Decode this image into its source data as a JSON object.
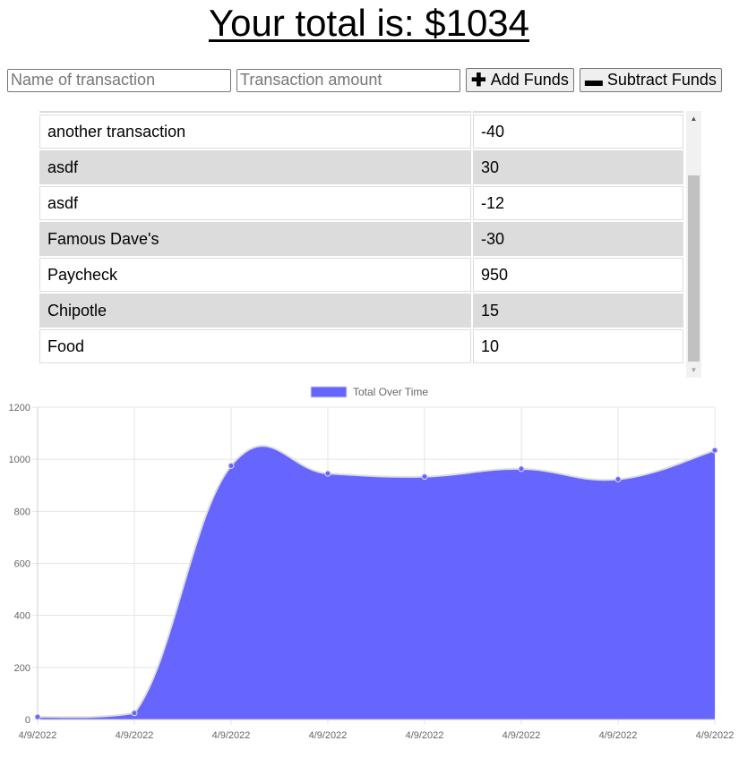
{
  "header": {
    "total_text": "Your total is: $1034"
  },
  "form": {
    "name_placeholder": "Name of transaction",
    "amount_placeholder": "Transaction amount",
    "add_label": "Add Funds",
    "add_icon": "plus-icon",
    "subtract_label": "Subtract Funds",
    "subtract_icon": "minus-icon"
  },
  "transactions": [
    {
      "name": "",
      "value": ""
    },
    {
      "name": "another transaction",
      "value": "-40"
    },
    {
      "name": "asdf",
      "value": "30"
    },
    {
      "name": "asdf",
      "value": "-12"
    },
    {
      "name": "Famous Dave's",
      "value": "-30"
    },
    {
      "name": "Paycheck",
      "value": "950"
    },
    {
      "name": "Chipotle",
      "value": "15"
    },
    {
      "name": "Food",
      "value": "10"
    }
  ],
  "chart_data": {
    "type": "area",
    "legend": [
      "Total Over Time"
    ],
    "legend_position": "top",
    "x": [
      "4/9/2022",
      "4/9/2022",
      "4/9/2022",
      "4/9/2022",
      "4/9/2022",
      "4/9/2022",
      "4/9/2022",
      "4/9/2022"
    ],
    "series": [
      {
        "name": "Total Over Time",
        "values": [
          10,
          25,
          975,
          945,
          933,
          963,
          923,
          1034
        ]
      }
    ],
    "ylim": [
      0,
      1200
    ],
    "yticks": [
      0,
      200,
      400,
      600,
      800,
      1000,
      1200
    ],
    "grid": true,
    "fill_color": "#6666ff",
    "line_color": "#dddddd"
  }
}
